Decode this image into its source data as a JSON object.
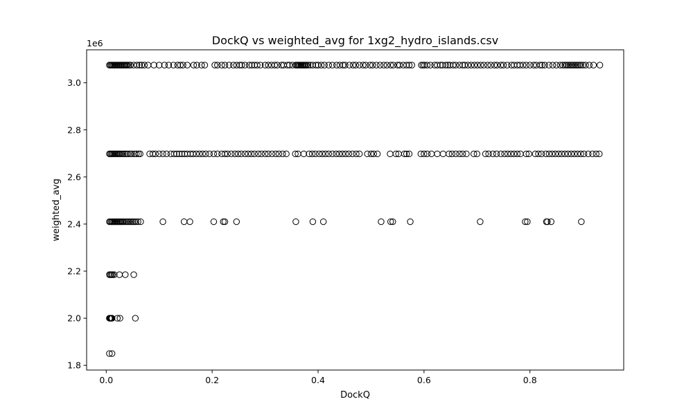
{
  "chart_data": {
    "type": "scatter",
    "title": "DockQ vs weighted_avg for 1xg2_hydro_islands.csv",
    "xlabel": "DockQ",
    "ylabel": "weighted_avg",
    "y_offset_label": "1e6",
    "xlim": [
      -0.037,
      0.977
    ],
    "ylim": [
      1.78,
      3.14
    ],
    "xticks": [
      0.0,
      0.2,
      0.4,
      0.6,
      0.8
    ],
    "xtick_labels": [
      "0.0",
      "0.2",
      "0.4",
      "0.6",
      "0.8"
    ],
    "yticks": [
      1.8,
      2.0,
      2.2,
      2.4,
      2.6,
      2.8,
      3.0
    ],
    "ytick_labels": [
      "1.8",
      "2.0",
      "2.2",
      "2.4",
      "2.6",
      "2.8",
      "3.0"
    ],
    "grid": false,
    "legend": "none",
    "marker": "open-circle",
    "marker_edge_color": "#000000",
    "y_scale_factor": 1000000,
    "levels": [
      {
        "y": 3.075,
        "x": [
          0.006,
          0.008,
          0.01,
          0.012,
          0.014,
          0.016,
          0.018,
          0.02,
          0.022,
          0.024,
          0.026,
          0.028,
          0.03,
          0.032,
          0.034,
          0.036,
          0.038,
          0.04,
          0.043,
          0.046,
          0.052,
          0.058,
          0.063,
          0.067,
          0.072,
          0.079,
          0.09,
          0.1,
          0.11,
          0.118,
          0.127,
          0.135,
          0.14,
          0.145,
          0.153,
          0.165,
          0.171,
          0.18,
          0.186,
          0.205,
          0.21,
          0.218,
          0.224,
          0.232,
          0.24,
          0.246,
          0.252,
          0.256,
          0.262,
          0.27,
          0.275,
          0.28,
          0.285,
          0.291,
          0.3,
          0.306,
          0.312,
          0.318,
          0.323,
          0.331,
          0.335,
          0.342,
          0.346,
          0.352,
          0.358,
          0.36,
          0.362,
          0.364,
          0.366,
          0.368,
          0.37,
          0.372,
          0.374,
          0.376,
          0.378,
          0.381,
          0.385,
          0.39,
          0.396,
          0.4,
          0.406,
          0.412,
          0.42,
          0.427,
          0.435,
          0.441,
          0.447,
          0.451,
          0.459,
          0.466,
          0.471,
          0.478,
          0.485,
          0.49,
          0.498,
          0.503,
          0.51,
          0.517,
          0.524,
          0.53,
          0.537,
          0.542,
          0.55,
          0.554,
          0.561,
          0.567,
          0.572,
          0.577,
          0.595,
          0.598,
          0.601,
          0.606,
          0.612,
          0.62,
          0.625,
          0.631,
          0.635,
          0.641,
          0.645,
          0.649,
          0.655,
          0.66,
          0.667,
          0.673,
          0.677,
          0.683,
          0.689,
          0.695,
          0.701,
          0.707,
          0.713,
          0.72,
          0.726,
          0.733,
          0.738,
          0.745,
          0.75,
          0.757,
          0.765,
          0.77,
          0.776,
          0.781,
          0.787,
          0.793,
          0.8,
          0.807,
          0.812,
          0.819,
          0.823,
          0.828,
          0.836,
          0.843,
          0.85,
          0.857,
          0.862,
          0.866,
          0.869,
          0.872,
          0.875,
          0.878,
          0.881,
          0.884,
          0.887,
          0.89,
          0.893,
          0.896,
          0.9,
          0.905,
          0.912,
          0.92,
          0.932
        ]
      },
      {
        "y": 2.698,
        "x": [
          0.006,
          0.008,
          0.01,
          0.012,
          0.014,
          0.016,
          0.018,
          0.02,
          0.022,
          0.024,
          0.026,
          0.029,
          0.032,
          0.035,
          0.038,
          0.041,
          0.045,
          0.048,
          0.053,
          0.057,
          0.061,
          0.064,
          0.082,
          0.088,
          0.093,
          0.1,
          0.107,
          0.114,
          0.122,
          0.128,
          0.133,
          0.138,
          0.143,
          0.148,
          0.153,
          0.159,
          0.164,
          0.17,
          0.176,
          0.182,
          0.188,
          0.195,
          0.203,
          0.21,
          0.218,
          0.224,
          0.229,
          0.236,
          0.243,
          0.249,
          0.255,
          0.262,
          0.268,
          0.274,
          0.28,
          0.287,
          0.293,
          0.3,
          0.306,
          0.313,
          0.32,
          0.326,
          0.333,
          0.34,
          0.357,
          0.362,
          0.373,
          0.383,
          0.389,
          0.395,
          0.402,
          0.408,
          0.414,
          0.42,
          0.427,
          0.434,
          0.44,
          0.446,
          0.452,
          0.458,
          0.465,
          0.472,
          0.478,
          0.493,
          0.5,
          0.505,
          0.512,
          0.536,
          0.547,
          0.552,
          0.563,
          0.567,
          0.572,
          0.594,
          0.6,
          0.606,
          0.614,
          0.625,
          0.636,
          0.647,
          0.653,
          0.66,
          0.667,
          0.673,
          0.68,
          0.694,
          0.7,
          0.716,
          0.722,
          0.73,
          0.737,
          0.745,
          0.752,
          0.758,
          0.764,
          0.77,
          0.776,
          0.782,
          0.793,
          0.798,
          0.81,
          0.816,
          0.822,
          0.83,
          0.836,
          0.842,
          0.848,
          0.854,
          0.86,
          0.866,
          0.872,
          0.878,
          0.884,
          0.89,
          0.896,
          0.902,
          0.91,
          0.918,
          0.925,
          0.931
        ]
      },
      {
        "y": 2.41,
        "x": [
          0.006,
          0.008,
          0.01,
          0.012,
          0.014,
          0.016,
          0.018,
          0.02,
          0.022,
          0.024,
          0.026,
          0.028,
          0.03,
          0.032,
          0.035,
          0.038,
          0.041,
          0.044,
          0.047,
          0.05,
          0.053,
          0.056,
          0.06,
          0.065,
          0.107,
          0.147,
          0.158,
          0.203,
          0.221,
          0.224,
          0.246,
          0.358,
          0.39,
          0.41,
          0.519,
          0.537,
          0.541,
          0.574,
          0.706,
          0.791,
          0.795,
          0.831,
          0.833,
          0.84,
          0.897
        ]
      },
      {
        "y": 2.185,
        "x": [
          0.006,
          0.008,
          0.01,
          0.012,
          0.015,
          0.025,
          0.036,
          0.052
        ]
      },
      {
        "y": 2.0,
        "x": [
          0.006,
          0.007,
          0.008,
          0.009,
          0.01,
          0.011,
          0.021,
          0.026,
          0.055
        ]
      },
      {
        "y": 1.85,
        "x": [
          0.006,
          0.011
        ]
      }
    ]
  }
}
